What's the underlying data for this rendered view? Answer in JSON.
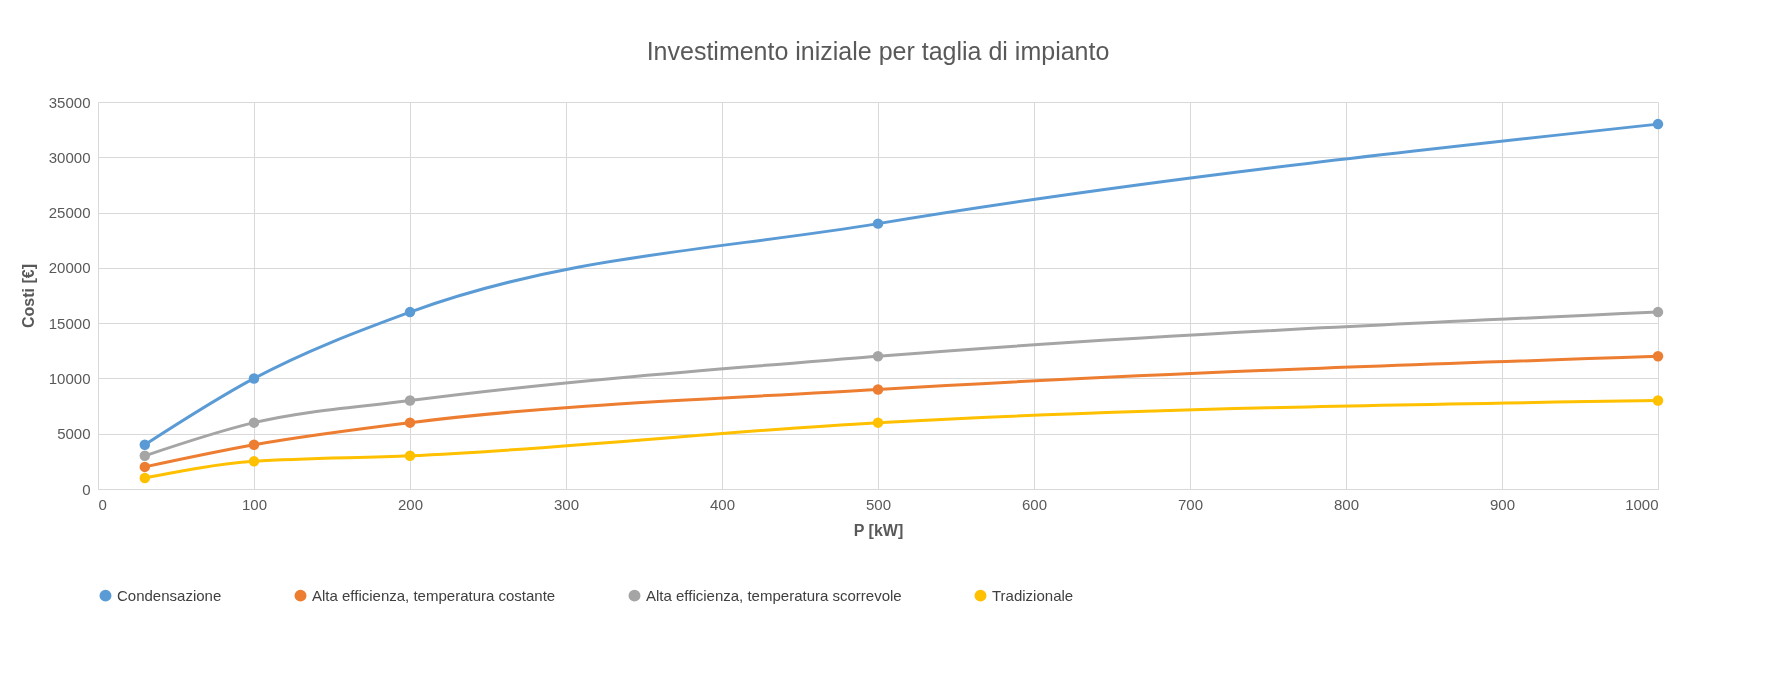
{
  "chart_data": {
    "type": "line",
    "title": "Investimento iniziale per taglia di impianto",
    "xlabel": "P [kW]",
    "ylabel": "Costi [€]",
    "x": [
      30,
      100,
      200,
      500,
      1000
    ],
    "series": [
      {
        "name": "Condensazione",
        "color": "#5b9bd5",
        "values": [
          4000,
          10000,
          16000,
          24000,
          33000
        ]
      },
      {
        "name": "Alta efficienza, temperatura costante",
        "color": "#ed7d31",
        "values": [
          2000,
          4000,
          6000,
          9000,
          12000
        ]
      },
      {
        "name": "Alta efficienza, temperatura scorrevole",
        "color": "#a5a5a5",
        "values": [
          3000,
          6000,
          8000,
          12000,
          16000
        ]
      },
      {
        "name": "Tradizionale",
        "color": "#ffc000",
        "values": [
          1000,
          2500,
          3000,
          6000,
          8000
        ]
      }
    ],
    "xlim": [
      0,
      1000
    ],
    "xticks": [
      0,
      100,
      200,
      300,
      400,
      500,
      600,
      700,
      800,
      900,
      1000
    ],
    "ylim": [
      0,
      35000
    ],
    "yticks": [
      0,
      5000,
      10000,
      15000,
      20000,
      25000,
      30000,
      35000
    ],
    "grid": true,
    "legend": "bottom",
    "marker": "circle"
  }
}
